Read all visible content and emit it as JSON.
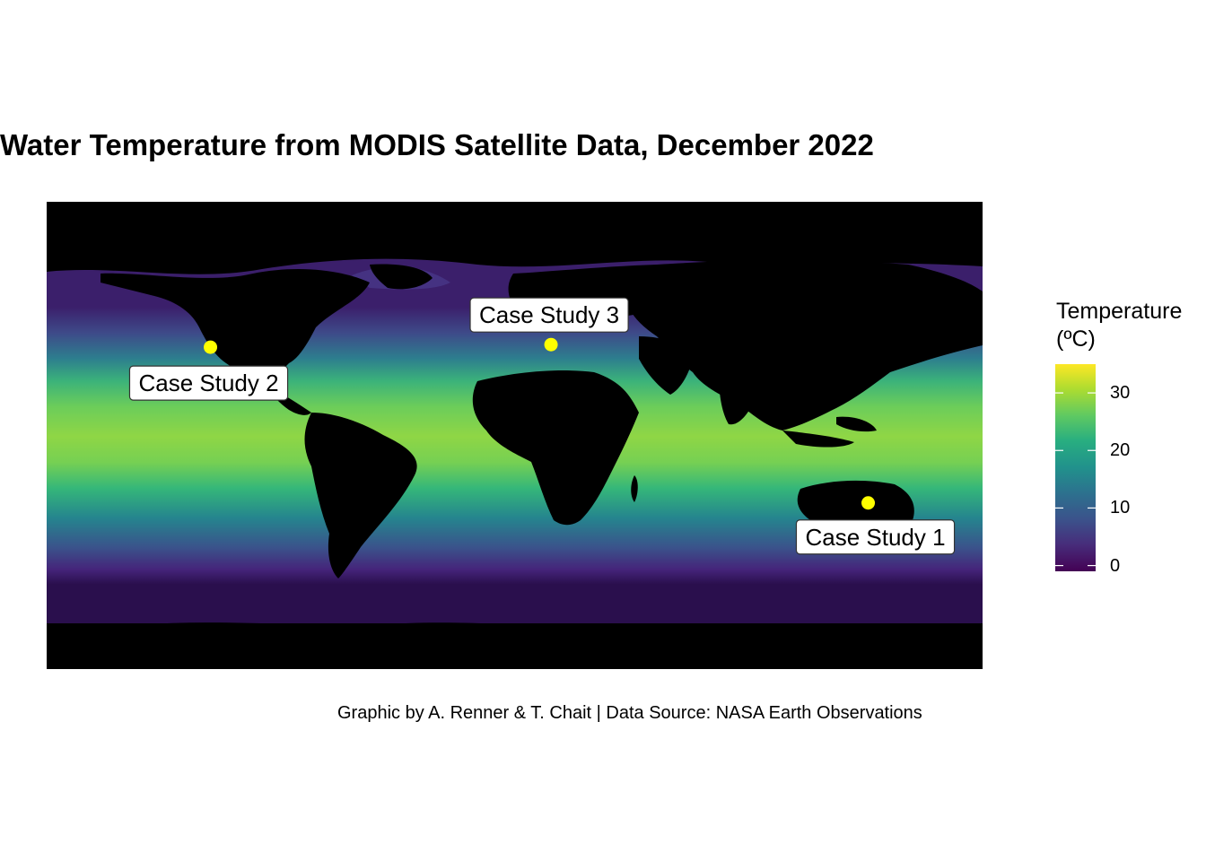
{
  "title": "Water Temperature from MODIS Satellite Data, December 2022",
  "caption": "Graphic by A. Renner & T. Chait | Data Source: NASA Earth Observations",
  "legend": {
    "title_line1": "Temperature",
    "title_line2": "(ºC)",
    "ticks": [
      "0",
      "10",
      "20",
      "30"
    ],
    "range": [
      -1,
      35
    ],
    "colormap": "viridis"
  },
  "map": {
    "projection": "equirectangular",
    "background_color": "#000000",
    "point_color": "#ffff00",
    "case_studies": [
      {
        "label": "Case Study 1",
        "lon": 136,
        "lat": -26
      },
      {
        "label": "Case Study 2",
        "lon": -117,
        "lat": 34
      },
      {
        "label": "Case Study 3",
        "lon": 14,
        "lat": 35
      }
    ]
  }
}
